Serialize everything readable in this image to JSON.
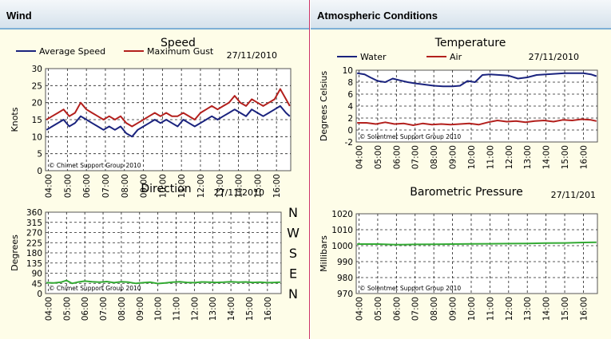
{
  "panels": {
    "wind": {
      "title": "Wind"
    },
    "atmos": {
      "title": "Atmospheric Conditions"
    }
  },
  "colors": {
    "average": "#1a237e",
    "gust": "#b3201d",
    "water": "#1a237e",
    "air": "#b3201d",
    "direction": "#33aa33",
    "pressure": "#33aa33"
  },
  "compass": [
    "N",
    "W",
    "S",
    "E",
    "N"
  ],
  "chart_data": [
    {
      "id": "speed",
      "type": "line",
      "title": "Speed",
      "date": "27/11/2010",
      "ylabel": "Knots",
      "watermark": "© Chimet Support Group 2010",
      "ylim": [
        0,
        30
      ],
      "yticks": [
        0,
        5,
        10,
        15,
        20,
        25,
        30
      ],
      "x_labels": [
        "04:00",
        "05:00",
        "06:00",
        "07:00",
        "08:00",
        "09:00",
        "10:00",
        "11:00",
        "12:00",
        "13:00",
        "14:00",
        "15:00",
        "16:00"
      ],
      "x_range": [
        3.85,
        16.75
      ],
      "series": [
        {
          "name": "Average Speed",
          "color": "#1a237e",
          "x": [
            3.9,
            4.2,
            4.5,
            4.8,
            5.1,
            5.4,
            5.7,
            6.0,
            6.3,
            6.6,
            6.9,
            7.2,
            7.5,
            7.8,
            8.1,
            8.4,
            8.7,
            9.0,
            9.3,
            9.6,
            9.9,
            10.2,
            10.5,
            10.8,
            11.1,
            11.4,
            11.7,
            12.0,
            12.3,
            12.6,
            12.9,
            13.2,
            13.5,
            13.8,
            14.1,
            14.4,
            14.7,
            15.0,
            15.3,
            15.6,
            15.9,
            16.2,
            16.5,
            16.7
          ],
          "y": [
            12,
            13,
            14,
            15,
            13,
            14,
            16,
            15,
            14,
            13,
            12,
            13,
            12,
            13,
            11,
            10,
            12,
            13,
            14,
            15,
            14,
            15,
            14,
            13,
            15,
            14,
            13,
            14,
            15,
            16,
            15,
            16,
            17,
            18,
            17,
            16,
            18,
            17,
            16,
            17,
            18,
            19,
            17,
            16
          ]
        },
        {
          "name": "Maximum Gust",
          "color": "#b3201d",
          "x": [
            3.9,
            4.2,
            4.5,
            4.8,
            5.1,
            5.4,
            5.7,
            6.0,
            6.3,
            6.6,
            6.9,
            7.2,
            7.5,
            7.8,
            8.1,
            8.4,
            8.7,
            9.0,
            9.3,
            9.6,
            9.9,
            10.2,
            10.5,
            10.8,
            11.1,
            11.4,
            11.7,
            12.0,
            12.3,
            12.6,
            12.9,
            13.2,
            13.5,
            13.8,
            14.1,
            14.4,
            14.7,
            15.0,
            15.3,
            15.6,
            15.9,
            16.2,
            16.5,
            16.7
          ],
          "y": [
            15,
            16,
            17,
            18,
            16,
            17,
            20,
            18,
            17,
            16,
            15,
            16,
            15,
            16,
            14,
            13,
            14,
            15,
            16,
            17,
            16,
            17,
            16,
            16,
            17,
            16,
            15,
            17,
            18,
            19,
            18,
            19,
            20,
            22,
            20,
            19,
            21,
            20,
            19,
            20,
            21,
            24,
            21,
            19
          ]
        }
      ]
    },
    {
      "id": "direction",
      "type": "line",
      "title": "Direction",
      "date": "27/11/2010",
      "ylabel": "Degrees",
      "watermark": "© Chimet Support Group 2010",
      "ylim": [
        0,
        360
      ],
      "yticks": [
        0,
        45,
        90,
        135,
        180,
        225,
        270,
        315,
        360
      ],
      "x_labels": [
        "04:00",
        "05:00",
        "06:00",
        "07:00",
        "08:00",
        "09:00",
        "10:00",
        "11:00",
        "12:00",
        "13:00",
        "14:00",
        "15:00",
        "16:00"
      ],
      "x_range": [
        3.85,
        16.75
      ],
      "series": [
        {
          "color": "#33aa33",
          "x": [
            3.9,
            4.3,
            4.7,
            5.0,
            5.3,
            5.6,
            6.0,
            6.4,
            6.8,
            7.2,
            7.6,
            8.0,
            8.4,
            8.8,
            9.2,
            9.6,
            10.0,
            10.4,
            10.8,
            11.2,
            11.6,
            12.0,
            12.4,
            12.8,
            13.2,
            13.6,
            14.0,
            14.4,
            14.8,
            15.2,
            15.6,
            16.0,
            16.4,
            16.7
          ],
          "y": [
            48,
            47,
            50,
            58,
            45,
            50,
            55,
            52,
            50,
            53,
            48,
            52,
            50,
            45,
            48,
            50,
            44,
            47,
            50,
            52,
            49,
            48,
            51,
            50,
            49,
            50,
            52,
            50,
            51,
            49,
            50,
            48,
            49,
            50
          ]
        }
      ]
    },
    {
      "id": "temperature",
      "type": "line",
      "title": "Temperature",
      "date": "27/11/2010",
      "ylabel": "Degrees Celsius",
      "watermark": "© Solentmet Support Group 2010",
      "ylim": [
        -2,
        10
      ],
      "yticks": [
        -2,
        0,
        2,
        4,
        6,
        8,
        10
      ],
      "x_labels": [
        "04:00",
        "05:00",
        "06:00",
        "07:00",
        "08:00",
        "09:00",
        "10:00",
        "11:00",
        "12:00",
        "13:00",
        "14:00",
        "15:00",
        "16:00"
      ],
      "x_range": [
        3.85,
        16.75
      ],
      "series": [
        {
          "name": "Water",
          "color": "#1a237e",
          "x": [
            3.9,
            4.3,
            4.6,
            5.0,
            5.4,
            5.8,
            6.2,
            6.6,
            7.0,
            7.5,
            8.0,
            8.5,
            9.0,
            9.4,
            9.8,
            10.2,
            10.6,
            11.0,
            11.5,
            12.0,
            12.5,
            13.0,
            13.5,
            14.0,
            14.5,
            15.0,
            15.5,
            16.0,
            16.4,
            16.7
          ],
          "y": [
            9.5,
            9.3,
            8.8,
            8.2,
            8.0,
            8.6,
            8.3,
            8.0,
            7.8,
            7.6,
            7.4,
            7.3,
            7.3,
            7.4,
            8.2,
            8.0,
            9.2,
            9.3,
            9.2,
            9.1,
            8.6,
            8.8,
            9.2,
            9.3,
            9.4,
            9.5,
            9.5,
            9.5,
            9.3,
            9.0
          ]
        },
        {
          "name": "Air",
          "color": "#b3201d",
          "x": [
            3.9,
            4.4,
            4.9,
            5.4,
            5.9,
            6.4,
            6.9,
            7.4,
            7.9,
            8.4,
            8.9,
            9.4,
            9.9,
            10.4,
            10.9,
            11.4,
            11.9,
            12.4,
            12.9,
            13.4,
            13.9,
            14.4,
            14.9,
            15.4,
            15.9,
            16.4,
            16.7
          ],
          "y": [
            1.2,
            1.2,
            1.0,
            1.3,
            1.0,
            1.1,
            0.8,
            1.1,
            0.9,
            1.0,
            0.9,
            1.0,
            1.1,
            0.9,
            1.3,
            1.6,
            1.4,
            1.5,
            1.3,
            1.5,
            1.6,
            1.4,
            1.7,
            1.6,
            1.8,
            1.7,
            1.5
          ]
        }
      ]
    },
    {
      "id": "pressure",
      "type": "line",
      "title": "Barometric Pressure",
      "date": "27/11/201",
      "ylabel": "Millibars",
      "watermark": "© Solentmet Support Group 2010",
      "ylim": [
        970,
        1020
      ],
      "yticks": [
        970,
        980,
        990,
        1000,
        1010,
        1020
      ],
      "x_labels": [
        "04:00",
        "05:00",
        "06:00",
        "07:00",
        "08:00",
        "09:00",
        "10:00",
        "11:00",
        "12:00",
        "13:00",
        "14:00",
        "15:00",
        "16:00"
      ],
      "x_range": [
        3.85,
        16.75
      ],
      "series": [
        {
          "color": "#33aa33",
          "x": [
            3.9,
            5.0,
            6.0,
            7.0,
            8.0,
            9.0,
            10.0,
            11.0,
            12.0,
            13.0,
            14.0,
            15.0,
            16.0,
            16.7
          ],
          "y": [
            1001,
            1001,
            1000.6,
            1000.8,
            1000.9,
            1001,
            1001.1,
            1001.2,
            1001.3,
            1001.4,
            1001.6,
            1001.7,
            1002,
            1002.1
          ]
        }
      ]
    }
  ]
}
